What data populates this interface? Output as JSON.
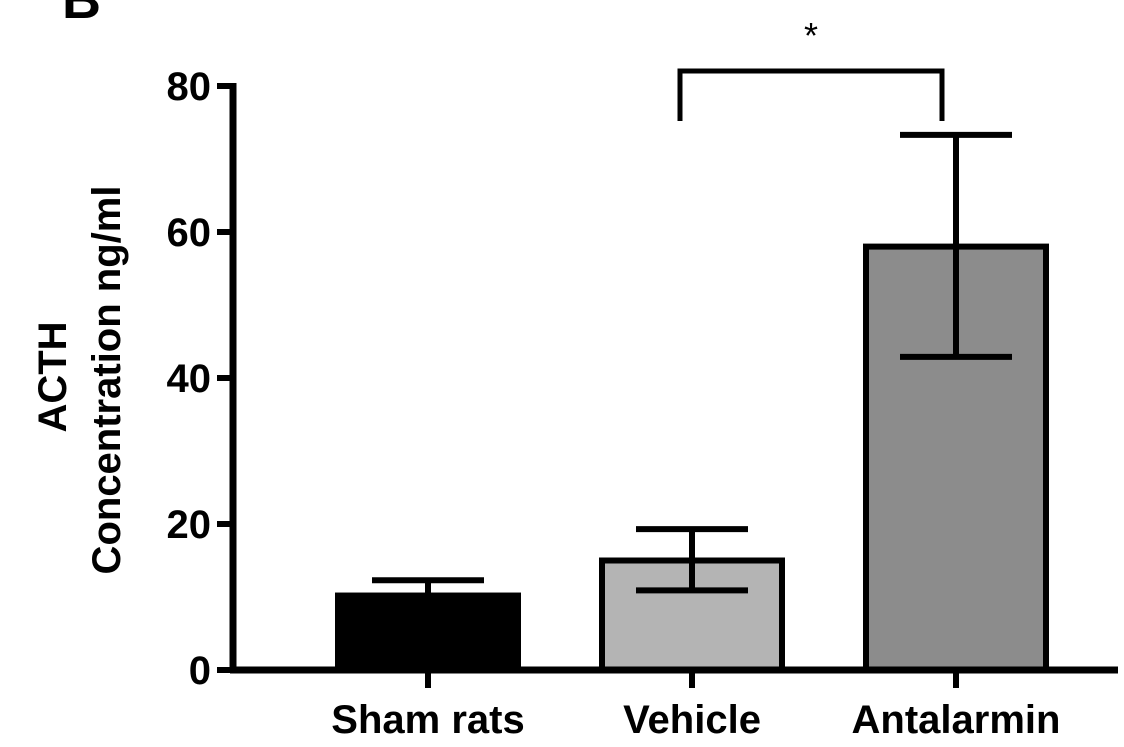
{
  "panel_label": "B",
  "chart_data": {
    "type": "bar",
    "categories": [
      "Sham rats",
      "Vehicle",
      "Antalarmin"
    ],
    "values": [
      10.2,
      15.0,
      58.0
    ],
    "error_upper": [
      12.3,
      19.3,
      73.3
    ],
    "error_lower": [
      10.2,
      10.9,
      42.9
    ],
    "bar_colors": [
      "#000000",
      "#b4b4b4",
      "#8c8c8c"
    ],
    "bar_outline_color": "#000000",
    "ylabel_line1": "ACTH",
    "ylabel_line2": "Concentration ng/ml",
    "xlabel": "",
    "ylim": [
      0,
      80
    ],
    "yticks": [
      0,
      20,
      40,
      60,
      80
    ],
    "ytick_labels": [
      "0",
      "20",
      "40",
      "60",
      "80"
    ],
    "grid": false,
    "legend": "none",
    "significance": {
      "from_category": "Vehicle",
      "to_category": "Antalarmin",
      "label": "*"
    }
  }
}
